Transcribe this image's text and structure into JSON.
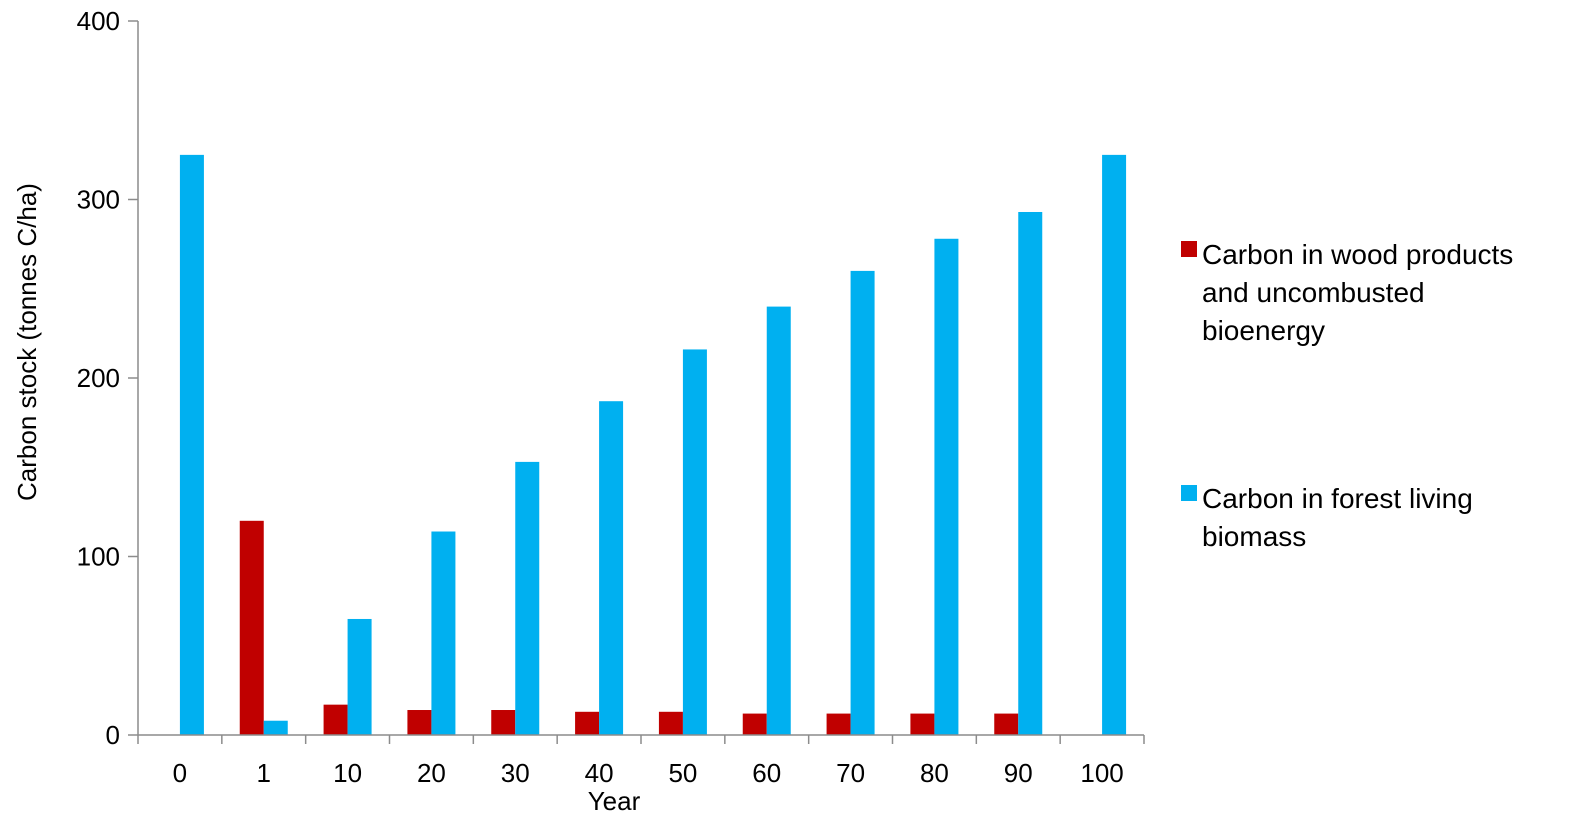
{
  "chart_data": {
    "type": "bar",
    "xlabel": "Year",
    "ylabel": "Carbon stock (tonnes C/ha)",
    "ylim": [
      0,
      400
    ],
    "yticks": [
      0,
      100,
      200,
      300,
      400
    ],
    "categories": [
      "0",
      "1",
      "10",
      "20",
      "30",
      "40",
      "50",
      "60",
      "70",
      "80",
      "90",
      "100"
    ],
    "series": [
      {
        "name": "Carbon in wood products and uncombusted bioenergy",
        "name_lines": [
          "Carbon in wood products",
          "and uncombusted",
          "bioenergy"
        ],
        "color": "#c00000",
        "values": [
          0,
          120,
          17,
          14,
          14,
          13,
          13,
          12,
          12,
          12,
          12,
          0
        ]
      },
      {
        "name": "Carbon in forest living biomass",
        "name_lines": [
          "Carbon in forest living",
          "biomass"
        ],
        "color": "#00b0f0",
        "values": [
          325,
          8,
          65,
          114,
          153,
          187,
          216,
          240,
          260,
          278,
          293,
          325
        ]
      }
    ],
    "legend_position": "right",
    "grid": false
  }
}
